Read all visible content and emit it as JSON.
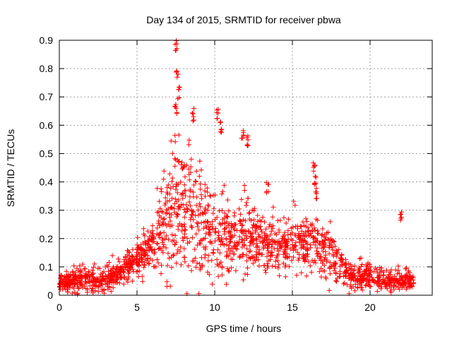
{
  "chart_data": {
    "type": "scatter",
    "title": "Day 134 of 2015, SRMTID for receiver pbwa",
    "xlabel": "GPS time / hours",
    "ylabel": "SRMTID / TECUs",
    "xlim": [
      0,
      24
    ],
    "ylim": [
      0,
      0.9
    ],
    "xticks": [
      "0",
      "5",
      "10",
      "15",
      "20"
    ],
    "yticks": [
      "0",
      "0.1",
      "0.2",
      "0.3",
      "0.4",
      "0.5",
      "0.6",
      "0.7",
      "0.8",
      "0.9"
    ],
    "grid": true,
    "marker": "plus",
    "series_color": "#ff0000",
    "envelope": {
      "hours": [
        0,
        0.5,
        1,
        1.5,
        2,
        2.5,
        3,
        3.5,
        4,
        4.5,
        5,
        5.5,
        6,
        6.5,
        7,
        7.5,
        8,
        8.5,
        9,
        9.5,
        10,
        10.5,
        11,
        11.5,
        12,
        12.5,
        13,
        13.5,
        14,
        14.5,
        15,
        15.5,
        16,
        16.5,
        17,
        17.5,
        18,
        18.5,
        19,
        19.5,
        20,
        20.5,
        21,
        21.5,
        22,
        22.5,
        22.8
      ],
      "typical_tecu": [
        0.04,
        0.045,
        0.05,
        0.055,
        0.05,
        0.045,
        0.05,
        0.07,
        0.09,
        0.11,
        0.12,
        0.15,
        0.17,
        0.21,
        0.25,
        0.28,
        0.3,
        0.28,
        0.27,
        0.23,
        0.21,
        0.2,
        0.2,
        0.21,
        0.2,
        0.2,
        0.19,
        0.18,
        0.17,
        0.17,
        0.18,
        0.17,
        0.18,
        0.18,
        0.16,
        0.13,
        0.12,
        0.08,
        0.06,
        0.06,
        0.07,
        0.06,
        0.05,
        0.05,
        0.055,
        0.05,
        0.05
      ],
      "spread_tecu": [
        0.02,
        0.02,
        0.03,
        0.03,
        0.03,
        0.02,
        0.03,
        0.03,
        0.03,
        0.03,
        0.03,
        0.05,
        0.06,
        0.1,
        0.15,
        0.17,
        0.16,
        0.13,
        0.12,
        0.09,
        0.1,
        0.1,
        0.08,
        0.09,
        0.08,
        0.08,
        0.07,
        0.07,
        0.06,
        0.06,
        0.06,
        0.06,
        0.07,
        0.07,
        0.06,
        0.05,
        0.05,
        0.03,
        0.03,
        0.03,
        0.03,
        0.03,
        0.02,
        0.02,
        0.02,
        0.02,
        0.02
      ]
    },
    "peaks": [
      {
        "hour": 7.5,
        "tecu": 0.9
      },
      {
        "hour": 7.6,
        "tecu": 0.8
      },
      {
        "hour": 7.7,
        "tecu": 0.74
      },
      {
        "hour": 7.5,
        "tecu": 0.68
      },
      {
        "hour": 8.6,
        "tecu": 0.66
      },
      {
        "hour": 10.2,
        "tecu": 0.66
      },
      {
        "hour": 10.4,
        "tecu": 0.62
      },
      {
        "hour": 11.8,
        "tecu": 0.59
      },
      {
        "hour": 12.1,
        "tecu": 0.57
      },
      {
        "hour": 16.4,
        "tecu": 0.48
      },
      {
        "hour": 16.5,
        "tecu": 0.42
      },
      {
        "hour": 16.5,
        "tecu": 0.39
      },
      {
        "hour": 13.4,
        "tecu": 0.4
      },
      {
        "hour": 22.0,
        "tecu": 0.3
      }
    ],
    "point_count": 1800
  }
}
